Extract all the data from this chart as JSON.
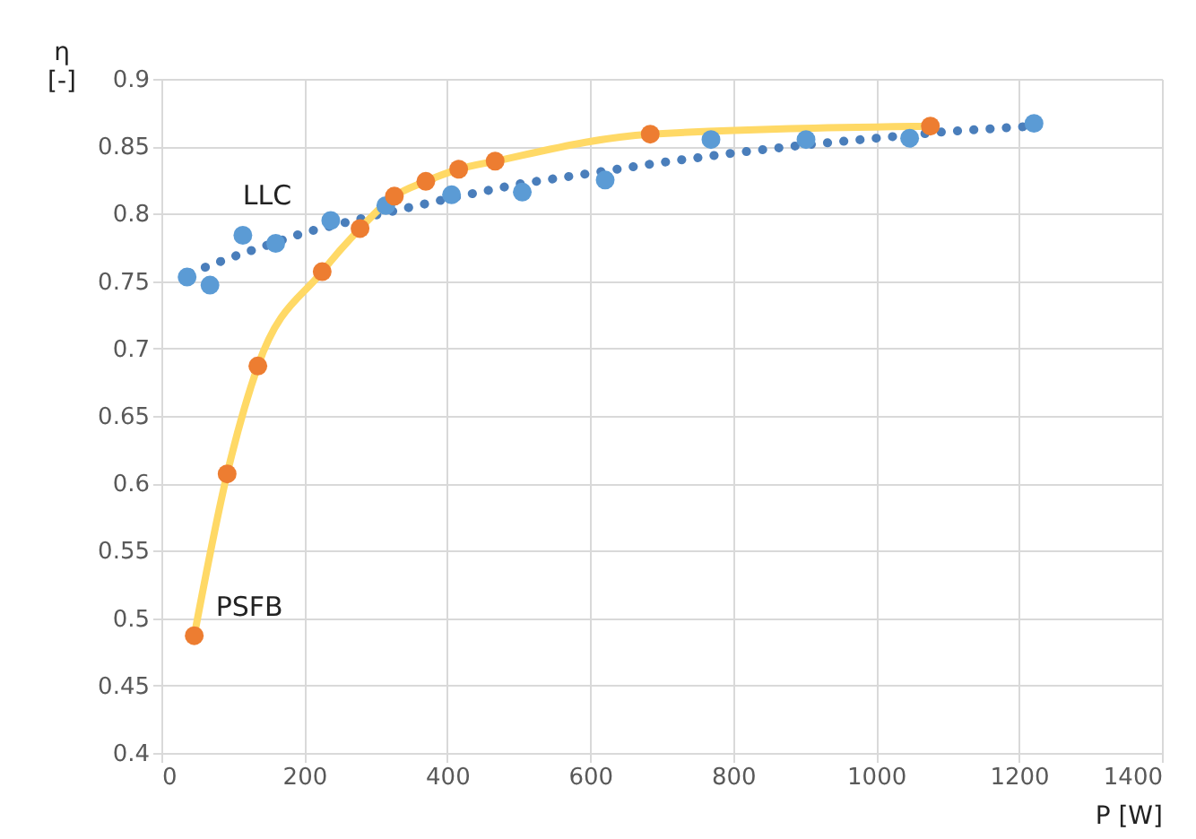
{
  "chart_data": {
    "type": "scatter",
    "xlabel": "P [W]",
    "ylabel": "η [-]",
    "xlim": [
      0,
      1400
    ],
    "xticks": [
      0,
      200,
      400,
      600,
      800,
      1000,
      1200,
      1400
    ],
    "ylim": [
      0.4,
      0.9
    ],
    "yticks": [
      0.4,
      0.45,
      0.5,
      0.55,
      0.6,
      0.65,
      0.7,
      0.75,
      0.8,
      0.85,
      0.9
    ],
    "grid": true,
    "legend": false,
    "marker": "circle",
    "series": [
      {
        "type": "line",
        "color": "#4a7ebb",
        "line_style": "dotted",
        "marker": "none",
        "x": [
          40,
          100,
          200,
          300,
          400,
          500,
          600,
          700,
          800,
          900,
          1000,
          1100,
          1220
        ],
        "values": [
          0.756,
          0.768,
          0.786,
          0.799,
          0.811,
          0.822,
          0.83,
          0.838,
          0.845,
          0.851,
          0.856,
          0.861,
          0.865
        ]
      },
      {
        "type": "line",
        "color": "#ffd966",
        "line_style": "solid",
        "marker": "none",
        "x": [
          46,
          92,
          135,
          225,
          278,
          326,
          370,
          416,
          467,
          684,
          1076
        ],
        "values": [
          0.487,
          0.607,
          0.687,
          0.757,
          0.789,
          0.813,
          0.824,
          0.833,
          0.839,
          0.859,
          0.865
        ]
      },
      {
        "name": "LLC",
        "color": "#5b9bd5",
        "x": [
          36,
          68,
          114,
          160,
          237,
          314,
          406,
          505,
          621,
          769,
          902,
          1047,
          1221
        ],
        "values": [
          0.753,
          0.747,
          0.784,
          0.778,
          0.795,
          0.806,
          0.814,
          0.816,
          0.825,
          0.855,
          0.855,
          0.856,
          0.867
        ]
      },
      {
        "name": "PSFB",
        "color": "#ed7d31",
        "x": [
          46,
          92,
          135,
          225,
          278,
          326,
          370,
          416,
          467,
          684,
          1076
        ],
        "values": [
          0.487,
          0.607,
          0.687,
          0.757,
          0.789,
          0.813,
          0.824,
          0.833,
          0.839,
          0.859,
          0.865
        ]
      }
    ]
  }
}
